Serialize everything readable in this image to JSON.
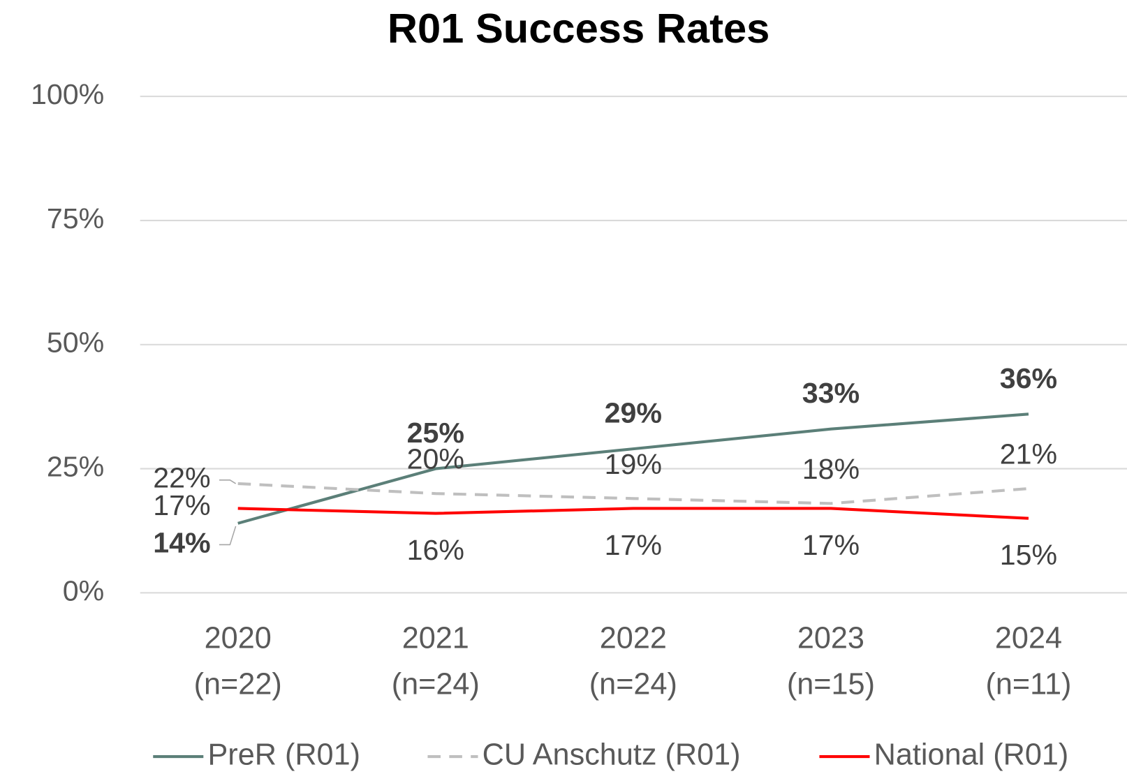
{
  "chart_data": {
    "type": "line",
    "title": "R01 Success Rates",
    "categories": [
      [
        "2020",
        "(n=22)"
      ],
      [
        "2021",
        "(n=24)"
      ],
      [
        "2022",
        "(n=24)"
      ],
      [
        "2023",
        "(n=15)"
      ],
      [
        "2024",
        "(n=11)"
      ]
    ],
    "series": [
      {
        "name": "PreR (R01)",
        "color": "#5b7f78",
        "dash": false,
        "bold_labels": true,
        "values": [
          14,
          25,
          29,
          33,
          36
        ],
        "value_labels": [
          "14%",
          "25%",
          "29%",
          "33%",
          "36%"
        ]
      },
      {
        "name": "CU Anschutz (R01)",
        "color": "#bfbfbf",
        "dash": true,
        "bold_labels": false,
        "values": [
          22,
          20,
          19,
          18,
          21
        ],
        "value_labels": [
          "22%",
          "20%",
          "19%",
          "18%",
          "21%"
        ]
      },
      {
        "name": "National (R01)",
        "color": "#ff0000",
        "dash": false,
        "bold_labels": false,
        "values": [
          17,
          16,
          17,
          17,
          15
        ],
        "value_labels": [
          "17%",
          "16%",
          "17%",
          "17%",
          "15%"
        ]
      }
    ],
    "ylim": [
      0,
      100
    ],
    "yticks": [
      {
        "value": 0,
        "label": "0%"
      },
      {
        "value": 25,
        "label": "25%"
      },
      {
        "value": 50,
        "label": "50%"
      },
      {
        "value": 75,
        "label": "75%"
      },
      {
        "value": 100,
        "label": "100%"
      }
    ],
    "grid": true,
    "legend": "bottom"
  }
}
